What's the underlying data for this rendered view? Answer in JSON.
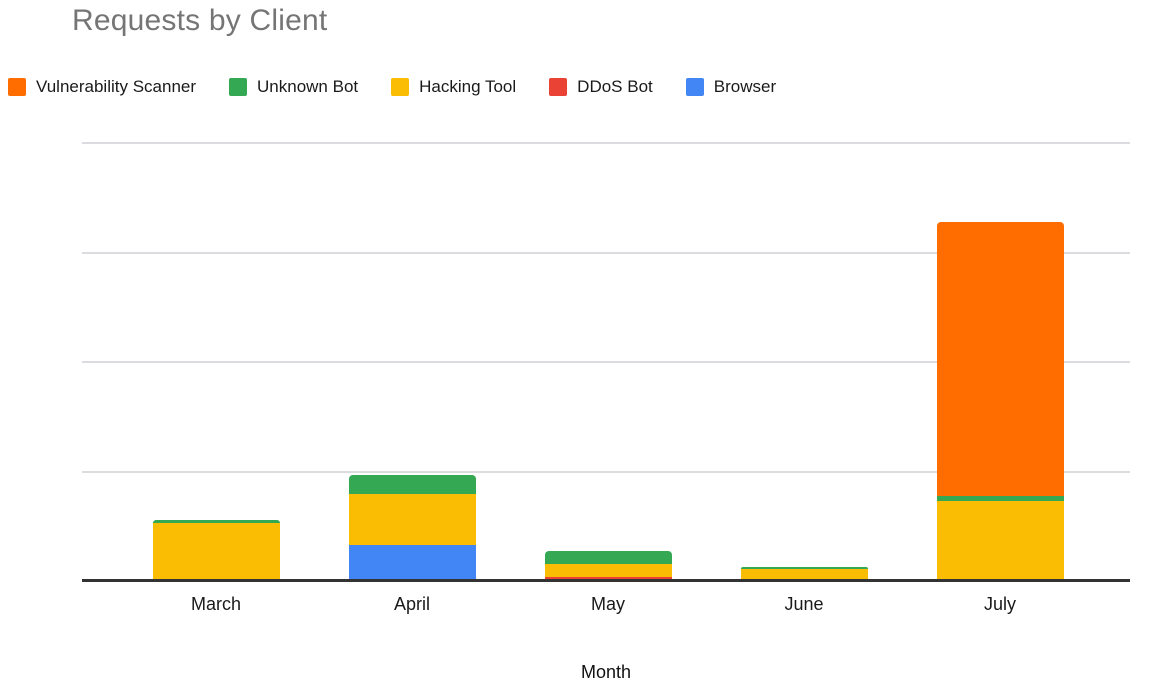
{
  "chart_data": {
    "type": "bar",
    "stacked": true,
    "title": "Requests by Client",
    "xlabel": "Month",
    "ylabel": "",
    "categories": [
      "March",
      "April",
      "May",
      "June",
      "July"
    ],
    "series": [
      {
        "name": "Vulnerability Scanner",
        "color": "#FF6D01",
        "values": [
          0,
          0,
          0,
          0,
          2.5
        ]
      },
      {
        "name": "Unknown Bot",
        "color": "#34A853",
        "values": [
          0.03,
          0.17,
          0.12,
          0.02,
          0.05
        ]
      },
      {
        "name": "Hacking Tool",
        "color": "#FBBC04",
        "values": [
          0.54,
          0.47,
          0.12,
          0.12,
          0.74
        ]
      },
      {
        "name": "DDoS Bot",
        "color": "#EA4335",
        "values": [
          0,
          0,
          0.05,
          0,
          0
        ]
      },
      {
        "name": "Browser",
        "color": "#4285F4",
        "values": [
          0,
          0.34,
          0,
          0,
          0
        ]
      }
    ],
    "stack_order_bottom_to_top": [
      "Browser",
      "DDoS Bot",
      "Hacking Tool",
      "Unknown Bot",
      "Vulnerability Scanner"
    ],
    "legend_position": "top",
    "legend_order": [
      "Vulnerability Scanner",
      "Unknown Bot",
      "Hacking Tool",
      "DDoS Bot",
      "Browser"
    ],
    "y_axis": {
      "labels_visible": false,
      "ylim": [
        0,
        4
      ],
      "gridline_step": 1,
      "units": "relative (one gridline = 1)"
    },
    "grid": true
  },
  "styles": {
    "title_color": "#757575",
    "text_color": "#1a1a1a",
    "gridline_color": "#dadce0",
    "axis_line_color": "#333333",
    "background": "#ffffff"
  }
}
